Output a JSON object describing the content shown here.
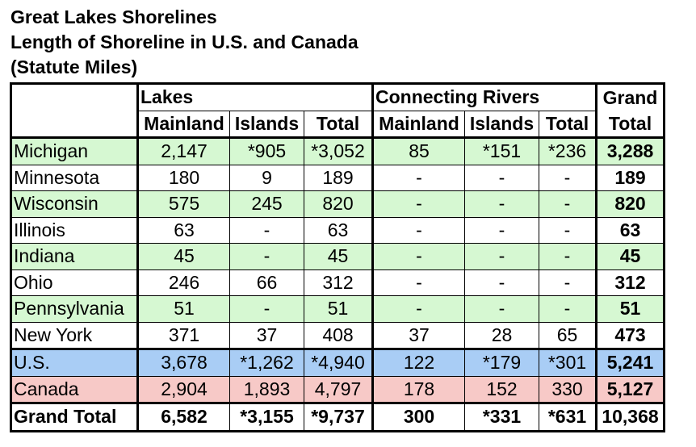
{
  "title": {
    "line1": "Great Lakes Shorelines",
    "line2": "Length of Shoreline in U.S. and Canada",
    "line3": "(Statute Miles)"
  },
  "table": {
    "group_headers": {
      "lakes": "Lakes",
      "rivers": "Connecting Rivers",
      "grand_1": "Grand",
      "grand_2": "Total"
    },
    "columns": [
      "Mainland",
      "Islands",
      "Total",
      "Mainland",
      "Islands",
      "Total"
    ],
    "rows": [
      {
        "name": "Michigan",
        "cells": [
          "2,147",
          "*905",
          "*3,052",
          "85",
          "*151",
          "*236"
        ],
        "grand": "3,288"
      },
      {
        "name": "Minnesota",
        "cells": [
          "180",
          "9",
          "189",
          "-",
          "-",
          "-"
        ],
        "grand": "189"
      },
      {
        "name": "Wisconsin",
        "cells": [
          "575",
          "245",
          "820",
          "-",
          "-",
          "-"
        ],
        "grand": "820"
      },
      {
        "name": "Illinois",
        "cells": [
          "63",
          "-",
          "63",
          "-",
          "-",
          "-"
        ],
        "grand": "63"
      },
      {
        "name": "Indiana",
        "cells": [
          "45",
          "-",
          "45",
          "-",
          "-",
          "-"
        ],
        "grand": "45"
      },
      {
        "name": "Ohio",
        "cells": [
          "246",
          "66",
          "312",
          "-",
          "-",
          "-"
        ],
        "grand": "312"
      },
      {
        "name": "Pennsylvania",
        "cells": [
          "51",
          "-",
          "51",
          "-",
          "-",
          "-"
        ],
        "grand": "51"
      },
      {
        "name": "New York",
        "cells": [
          "371",
          "37",
          "408",
          "37",
          "28",
          "65"
        ],
        "grand": "473"
      },
      {
        "name": "U.S.",
        "cells": [
          "3,678",
          "*1,262",
          "*4,940",
          "122",
          "*179",
          "*301"
        ],
        "grand": "5,241"
      },
      {
        "name": "Canada",
        "cells": [
          "2,904",
          "1,893",
          "4,797",
          "178",
          "152",
          "330"
        ],
        "grand": "5,127"
      },
      {
        "name": "Grand Total",
        "cells": [
          "6,582",
          "*3,155",
          "*9,737",
          "300",
          "*331",
          "*631"
        ],
        "grand": "10,368"
      }
    ],
    "colors": {
      "green": "#d6f8d2",
      "blue": "#a9cdf5",
      "pink": "#f7c9c7",
      "white": "#ffffff"
    }
  }
}
